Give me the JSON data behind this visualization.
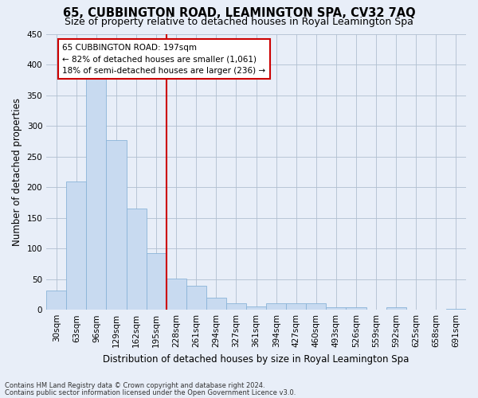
{
  "title": "65, CUBBINGTON ROAD, LEAMINGTON SPA, CV32 7AQ",
  "subtitle": "Size of property relative to detached houses in Royal Leamington Spa",
  "xlabel": "Distribution of detached houses by size in Royal Leamington Spa",
  "ylabel": "Number of detached properties",
  "footnote1": "Contains HM Land Registry data © Crown copyright and database right 2024.",
  "footnote2": "Contains public sector information licensed under the Open Government Licence v3.0.",
  "categories": [
    "30sqm",
    "63sqm",
    "96sqm",
    "129sqm",
    "162sqm",
    "195sqm",
    "228sqm",
    "261sqm",
    "294sqm",
    "327sqm",
    "361sqm",
    "394sqm",
    "427sqm",
    "460sqm",
    "493sqm",
    "526sqm",
    "559sqm",
    "592sqm",
    "625sqm",
    "658sqm",
    "691sqm"
  ],
  "values": [
    31,
    210,
    378,
    277,
    165,
    93,
    51,
    39,
    20,
    11,
    6,
    11,
    11,
    10,
    4,
    4,
    0,
    4,
    0,
    0,
    2
  ],
  "bar_color": "#c8daf0",
  "bar_edge_color": "#8ab4d8",
  "reference_line_x": 5.5,
  "reference_line_color": "#cc0000",
  "annotation_text": "65 CUBBINGTON ROAD: 197sqm\n← 82% of detached houses are smaller (1,061)\n18% of semi-detached houses are larger (236) →",
  "annotation_box_color": "#cc0000",
  "annotation_bg": "#ffffff",
  "ylim": [
    0,
    450
  ],
  "yticks": [
    0,
    50,
    100,
    150,
    200,
    250,
    300,
    350,
    400,
    450
  ],
  "bg_color": "#e8eef8",
  "plot_bg_color": "#e8eef8",
  "title_fontsize": 10.5,
  "subtitle_fontsize": 9,
  "ylabel_fontsize": 8.5,
  "xlabel_fontsize": 8.5,
  "tick_fontsize": 7.5,
  "annotation_fontsize": 7.5,
  "footnote_fontsize": 6
}
